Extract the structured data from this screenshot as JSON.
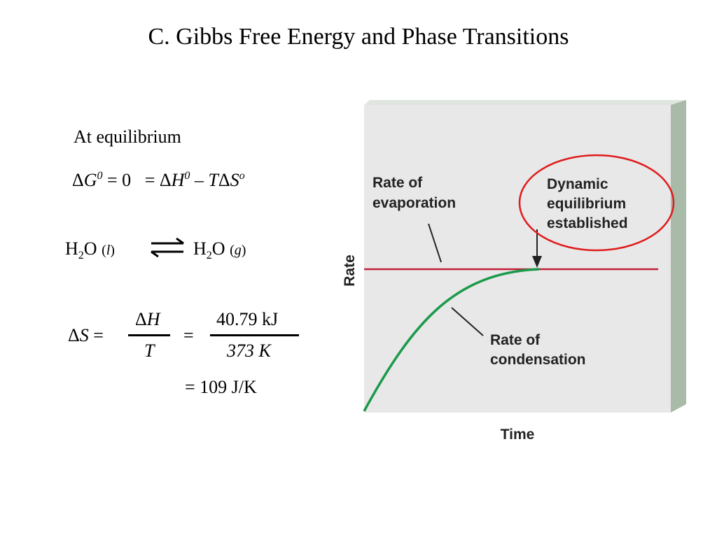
{
  "header": {
    "title": "C. Gibbs Free Energy and Phase Transitions"
  },
  "left": {
    "heading": "At equilibrium",
    "equation_1": [
      "Δ",
      "G",
      "0",
      " = 0 ",
      "  = Δ",
      "H",
      "0",
      " – ",
      "T",
      "Δ",
      "S",
      "o"
    ],
    "reactant": [
      "H",
      "2",
      "O ",
      "(",
      "l",
      ")"
    ],
    "product": [
      "H",
      "2",
      "O ",
      "(",
      "g",
      ")"
    ],
    "entropy": {
      "lhs": [
        "Δ",
        "S",
        " ="
      ],
      "num_1": [
        "Δ",
        "H"
      ],
      "den_1": "T",
      "equals": "=",
      "num_2": "40.79 kJ",
      "den_2": "373 K",
      "result": "= 109 J/K"
    }
  },
  "diagram": {
    "evaporation_label": [
      "Rate of",
      "evaporation"
    ],
    "equilibrium_label": [
      "Dynamic",
      "equilibrium",
      "established"
    ],
    "condensation_label": [
      "Rate of",
      "condensation"
    ],
    "y_axis_label": "Rate",
    "x_axis_label": "Time"
  }
}
